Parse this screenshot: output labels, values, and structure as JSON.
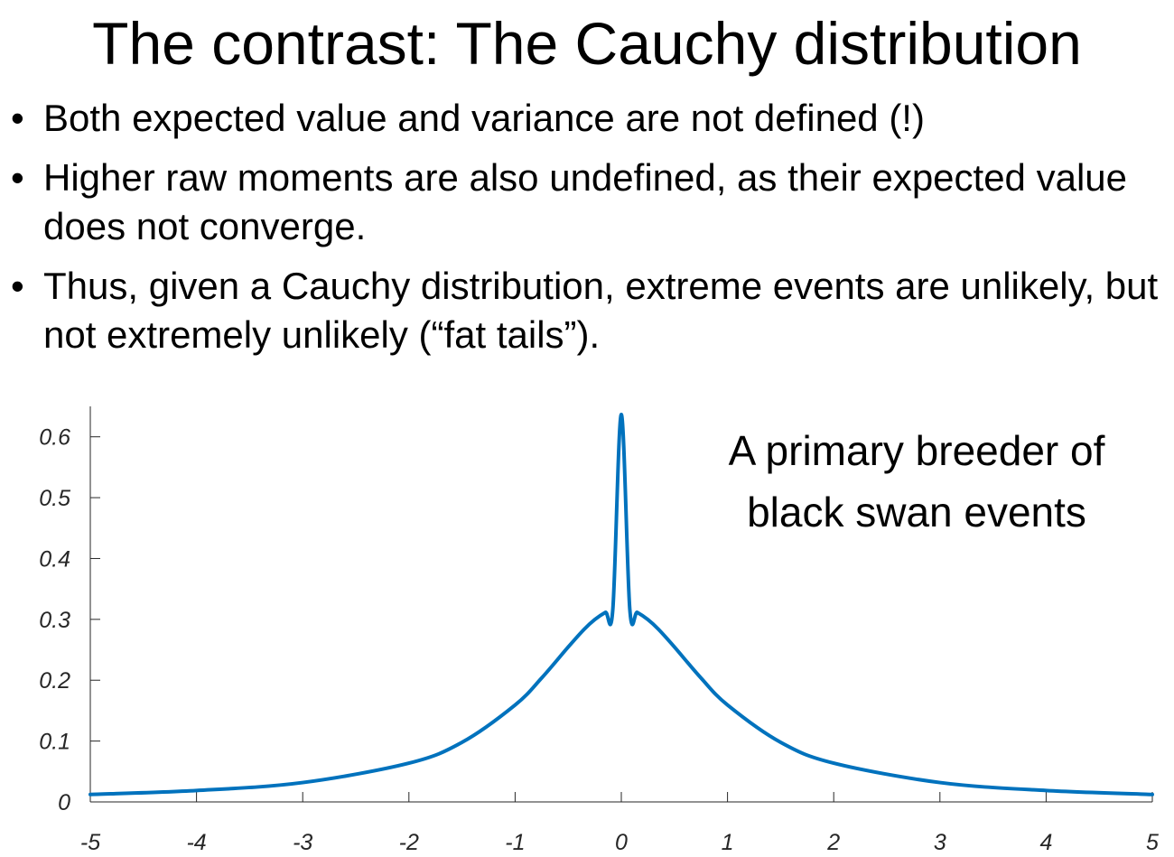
{
  "slide": {
    "title": "The contrast: The Cauchy distribution",
    "bullets": [
      "Both expected value and variance are not defined (!)",
      "Higher raw moments are also undefined, as their expected value does not converge.",
      "Thus, given a Cauchy distribution, extreme events are unlikely, but not extremely unlikely (“fat tails”)."
    ],
    "bullet_glyph": "•"
  },
  "chart_data": {
    "type": "line",
    "title": "",
    "xlabel": "",
    "ylabel": "",
    "xlim": [
      -5,
      5
    ],
    "ylim": [
      0,
      0.65
    ],
    "x_ticks": [
      "-5",
      "-4",
      "-3",
      "-2",
      "-1",
      "0",
      "1",
      "2",
      "3",
      "4",
      "5"
    ],
    "y_ticks": [
      "0",
      "0.1",
      "0.2",
      "0.3",
      "0.4",
      "0.5",
      "0.6"
    ],
    "grid": false,
    "line_color": "#0072BD",
    "series": [
      {
        "x": [
          -5,
          -4,
          -3,
          -2,
          -1.5,
          -1,
          -0.75,
          -0.5,
          -0.35,
          -0.25,
          -0.15,
          -0.08,
          0,
          0.08,
          0.15,
          0.25,
          0.35,
          0.5,
          0.75,
          1,
          1.5,
          2,
          3,
          4,
          5
        ],
        "y": [
          0.0122,
          0.0187,
          0.0318,
          0.0637,
          0.0979,
          0.1592,
          0.2037,
          0.2546,
          0.2836,
          0.2996,
          0.3114,
          0.3163,
          0.6366,
          0.3163,
          0.3114,
          0.2996,
          0.2836,
          0.2546,
          0.2037,
          0.1592,
          0.0979,
          0.0637,
          0.0318,
          0.0187,
          0.0122
        ]
      }
    ],
    "annotations": [
      "A primary breeder of",
      "black swan events"
    ]
  }
}
